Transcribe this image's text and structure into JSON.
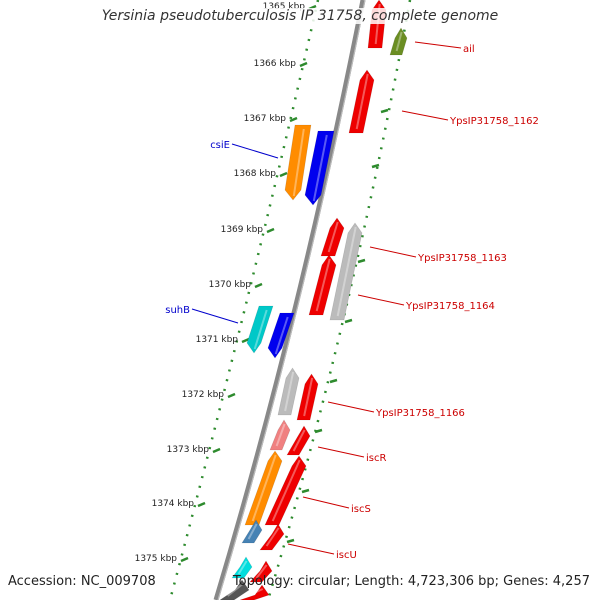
{
  "title": "Yersinia pseudotuberculosis IP 31758, complete genome",
  "footer": {
    "accession": "Accession: NC_009708",
    "topology": "Topology: circular; Length: 4,723,306 bp; Genes: 4,257"
  },
  "ticks": [
    "1365 kbp",
    "1366 kbp",
    "1367 kbp",
    "1368 kbp",
    "1369 kbp",
    "1370 kbp",
    "1371 kbp",
    "1372 kbp",
    "1373 kbp",
    "1374 kbp",
    "1375 kbp"
  ],
  "colors": {
    "backbone": "#888888",
    "dots": "#2e8b2e",
    "left_label": "#0000cc",
    "right_label": "#cc0000"
  },
  "left_labels": [
    "csiE",
    "suhB"
  ],
  "right_labels": [
    "ail",
    "YpsIP31758_1162",
    "YpsIP31758_1163",
    "YpsIP31758_1164",
    "YpsIP31758_1166",
    "iscR",
    "iscS",
    "iscU"
  ],
  "genes": [
    {
      "color": "#ff8c00",
      "strand": "reverse"
    },
    {
      "color": "#0000ee",
      "strand": "reverse"
    },
    {
      "color": "#00c8c8",
      "strand": "reverse"
    },
    {
      "color": "#0000ee",
      "strand": "reverse"
    },
    {
      "color": "#ee0000",
      "strand": "forward"
    },
    {
      "color": "#6b8e23",
      "strand": "forward"
    },
    {
      "color": "#ee0000",
      "strand": "forward"
    },
    {
      "color": "#ee0000",
      "strand": "forward"
    },
    {
      "color": "#bbbbbb",
      "strand": "forward"
    },
    {
      "color": "#ee0000",
      "strand": "forward"
    },
    {
      "color": "#bbbbbb",
      "strand": "forward"
    },
    {
      "color": "#ee0000",
      "strand": "forward"
    },
    {
      "color": "#f08080",
      "strand": "forward"
    },
    {
      "color": "#ee0000",
      "strand": "forward"
    },
    {
      "color": "#ff8c00",
      "strand": "forward"
    },
    {
      "color": "#ee0000",
      "strand": "forward"
    },
    {
      "color": "#4682b4",
      "strand": "forward"
    },
    {
      "color": "#ee0000",
      "strand": "forward"
    },
    {
      "color": "#00dddd",
      "strand": "forward"
    },
    {
      "color": "#ee0000",
      "strand": "forward"
    },
    {
      "color": "#555555",
      "strand": "forward"
    },
    {
      "color": "#ee0000",
      "strand": "forward"
    },
    {
      "color": "#b5b56a",
      "strand": "forward"
    }
  ]
}
